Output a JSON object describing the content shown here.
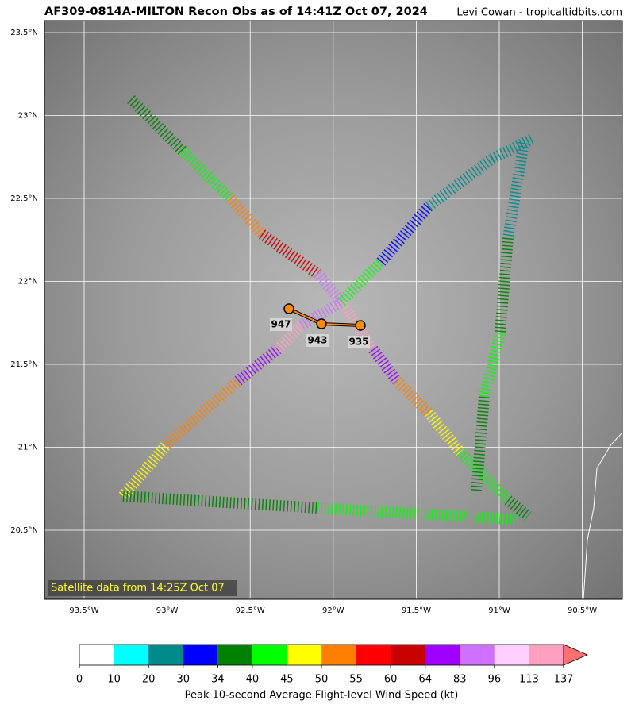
{
  "header": {
    "title": "AF309-0814A-MILTON Recon Obs as of 14:41Z Oct 07, 2024",
    "credit": "Levi Cowan - tropicaltidbits.com"
  },
  "map": {
    "lat_ticks": [
      "23.5°N",
      "23°N",
      "22.5°N",
      "22°N",
      "21.5°N",
      "21°N",
      "20.5°N"
    ],
    "lon_ticks": [
      "93.5°W",
      "93°W",
      "92.5°W",
      "92°W",
      "91.5°W",
      "91°W",
      "90.5°W"
    ],
    "pressure_labels": [
      "947",
      "943",
      "935"
    ],
    "caption": "Satellite data from 14:25Z Oct 07"
  },
  "colorbar": {
    "labels": [
      "0",
      "10",
      "20",
      "30",
      "34",
      "40",
      "45",
      "50",
      "55",
      "60",
      "64",
      "83",
      "96",
      "113",
      "137"
    ],
    "colors": [
      "#ffffff",
      "#00ffff",
      "#008b8b",
      "#0000ff",
      "#008000",
      "#00ff00",
      "#ffff00",
      "#ff8000",
      "#ff0000",
      "#c80000",
      "#a000ff",
      "#d070ff",
      "#ffd0ff",
      "#ffa0c0",
      "#ff7070"
    ],
    "label": "Peak 10-second Average Flight-level Wind Speed (kt)"
  }
}
